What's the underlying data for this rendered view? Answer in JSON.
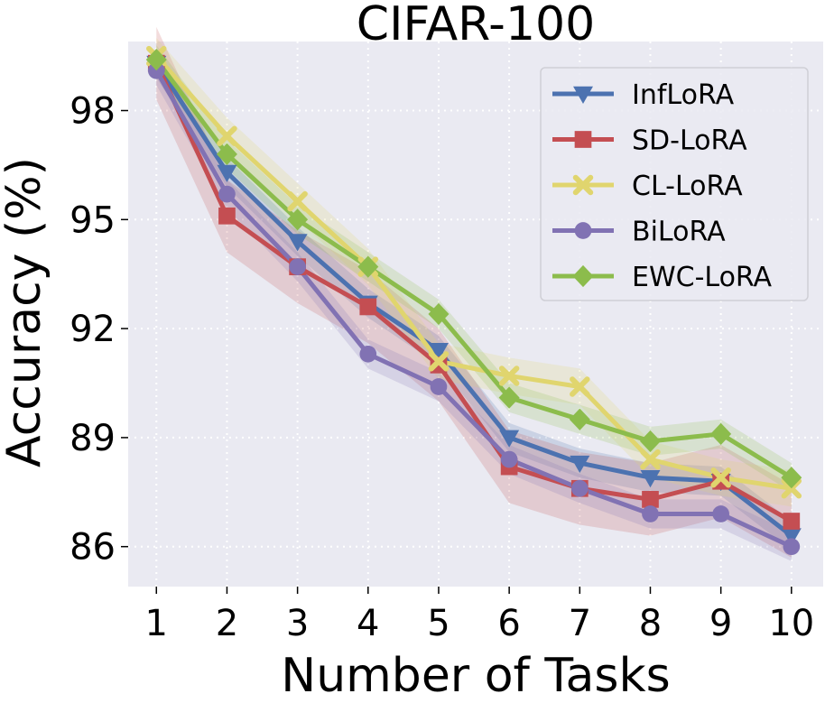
{
  "chart_data": {
    "type": "line",
    "title": "CIFAR-100",
    "xlabel": "Number of Tasks",
    "ylabel": "Accuracy (%)",
    "x": [
      1,
      2,
      3,
      4,
      5,
      6,
      7,
      8,
      9,
      10
    ],
    "xticks": [
      "1",
      "2",
      "3",
      "4",
      "5",
      "6",
      "7",
      "8",
      "9",
      "10"
    ],
    "yticks": [
      86,
      89,
      92,
      95,
      98
    ],
    "ytick_labels": [
      "86",
      "89",
      "92",
      "95",
      "98"
    ],
    "xlim": [
      0.6,
      10.45
    ],
    "ylim": [
      84.9,
      99.9
    ],
    "grid": true,
    "legend": "top-right",
    "series": [
      {
        "name": "InfLoRA",
        "color": "#4c72b0",
        "marker": "triangle-down",
        "values": [
          99.3,
          96.3,
          94.4,
          92.7,
          91.4,
          89.0,
          88.3,
          87.9,
          87.8,
          86.3
        ],
        "band": 0.4
      },
      {
        "name": "SD-LoRA",
        "color": "#c44e52",
        "marker": "square",
        "values": [
          99.3,
          95.1,
          93.7,
          92.6,
          91.0,
          88.2,
          87.6,
          87.3,
          87.8,
          86.7
        ],
        "band": 1.0
      },
      {
        "name": "CL-LoRA",
        "color": "#e0d56e",
        "marker": "x",
        "values": [
          99.5,
          97.3,
          95.5,
          93.7,
          91.1,
          90.7,
          90.4,
          88.4,
          87.9,
          87.6
        ],
        "band": 0.5
      },
      {
        "name": "BiLoRA",
        "color": "#8172b3",
        "marker": "circle",
        "values": [
          99.1,
          95.7,
          93.7,
          91.3,
          90.4,
          88.4,
          87.6,
          86.9,
          86.9,
          86.0
        ],
        "band": 0.4
      },
      {
        "name": "EWC-LoRA",
        "color": "#8cbc4c",
        "marker": "diamond",
        "values": [
          99.4,
          96.8,
          95.0,
          93.7,
          92.4,
          90.1,
          89.5,
          88.9,
          89.1,
          87.9
        ],
        "band": 0.4
      }
    ]
  }
}
